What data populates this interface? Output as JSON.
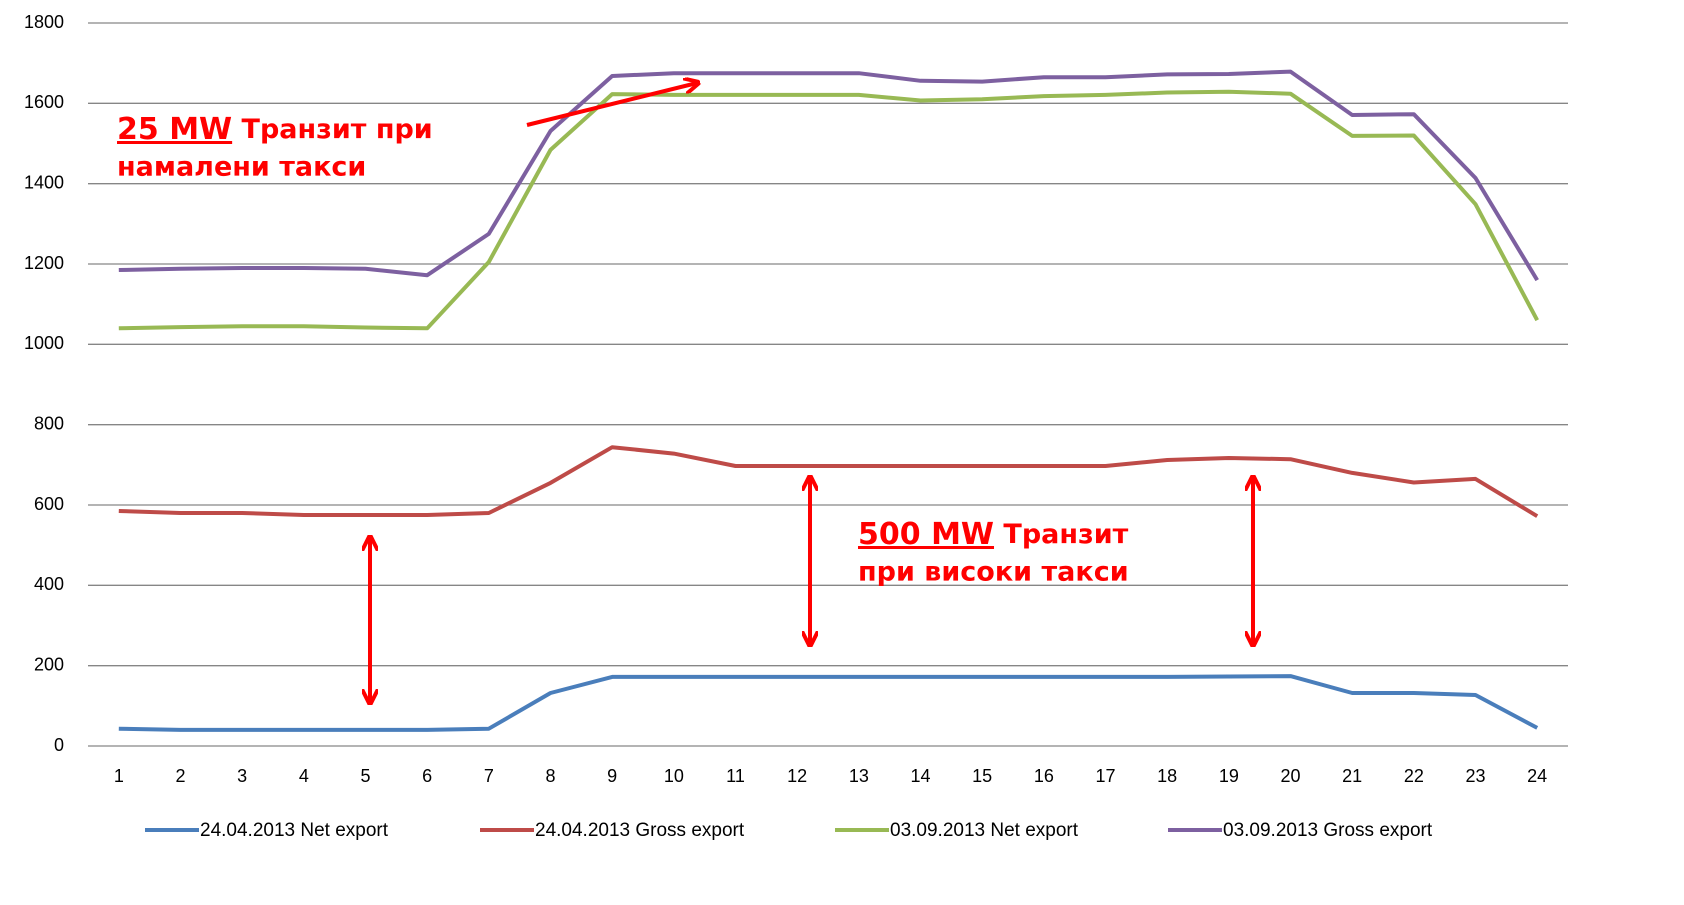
{
  "chart_data": {
    "type": "line",
    "categories": [
      "1",
      "2",
      "3",
      "4",
      "5",
      "6",
      "7",
      "8",
      "9",
      "10",
      "11",
      "12",
      "13",
      "14",
      "15",
      "16",
      "17",
      "18",
      "19",
      "20",
      "21",
      "22",
      "23",
      "24"
    ],
    "series": [
      {
        "name": "24.04.2013 Net export",
        "color": "#4a7ebb",
        "values": [
          43,
          40,
          40,
          40,
          40,
          40,
          43,
          132,
          172,
          172,
          172,
          172,
          172,
          172,
          172,
          172,
          172,
          172,
          173,
          174,
          132,
          132,
          127,
          45
        ]
      },
      {
        "name": "24.04.2013 Gross export",
        "color": "#be4b48",
        "values": [
          585,
          580,
          580,
          575,
          575,
          575,
          580,
          655,
          744,
          728,
          697,
          697,
          697,
          697,
          697,
          697,
          697,
          712,
          717,
          714,
          680,
          656,
          665,
          572
        ]
      },
      {
        "name": "03.09.2013 Net export",
        "color": "#98b954",
        "values": [
          1040,
          1043,
          1045,
          1045,
          1042,
          1040,
          1205,
          1484,
          1623,
          1621,
          1621,
          1621,
          1621,
          1607,
          1610,
          1618,
          1621,
          1627,
          1629,
          1624,
          1519,
          1520,
          1349,
          1060
        ]
      },
      {
        "name": "03.09.2013 Gross export",
        "color": "#7d60a0",
        "values": [
          1185,
          1188,
          1190,
          1190,
          1188,
          1172,
          1275,
          1531,
          1668,
          1675,
          1675,
          1675,
          1675,
          1656,
          1654,
          1665,
          1665,
          1672,
          1673,
          1679,
          1571,
          1573,
          1414,
          1160
        ]
      }
    ],
    "ylim": [
      0,
      1800
    ],
    "yticks": [
      0,
      200,
      400,
      600,
      800,
      1000,
      1200,
      1400,
      1600,
      1800
    ],
    "grid": true,
    "legend": "bottom",
    "annotations": [
      {
        "emphasis": "25 MW",
        "lines": [
          "Транзит при",
          "намалени такси"
        ]
      },
      {
        "emphasis": "500 MW",
        "lines": [
          "Транзит",
          "при високи такси"
        ]
      }
    ]
  }
}
